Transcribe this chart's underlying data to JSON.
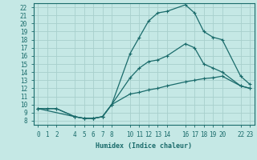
{
  "xlabel": "Humidex (Indice chaleur)",
  "background_color": "#c5e8e5",
  "grid_color": "#a8d0cc",
  "line_color": "#1a6b6b",
  "xlim": [
    -0.5,
    23.5
  ],
  "ylim": [
    7.5,
    22.5
  ],
  "xticks": [
    0,
    1,
    2,
    4,
    5,
    6,
    7,
    8,
    10,
    11,
    12,
    13,
    14,
    16,
    17,
    18,
    19,
    20,
    22,
    23
  ],
  "yticks": [
    8,
    9,
    10,
    11,
    12,
    13,
    14,
    15,
    16,
    17,
    18,
    19,
    20,
    21,
    22
  ],
  "line1_x": [
    0,
    1,
    2,
    4,
    5,
    6,
    7,
    8,
    10,
    11,
    12,
    13,
    14,
    16,
    17,
    18,
    19,
    20,
    22,
    23
  ],
  "line1_y": [
    9.5,
    9.5,
    9.5,
    8.5,
    8.3,
    8.3,
    8.5,
    10.0,
    16.3,
    18.3,
    20.3,
    21.3,
    21.5,
    22.3,
    21.3,
    19.0,
    18.3,
    18.0,
    13.5,
    12.5
  ],
  "line2_x": [
    0,
    4,
    5,
    6,
    7,
    8,
    10,
    11,
    12,
    13,
    14,
    16,
    17,
    18,
    19,
    20,
    22,
    23
  ],
  "line2_y": [
    9.5,
    8.5,
    8.3,
    8.3,
    8.5,
    10.0,
    13.3,
    14.5,
    15.3,
    15.5,
    16.0,
    17.5,
    17.0,
    15.0,
    14.5,
    14.0,
    12.3,
    12.0
  ],
  "line3_x": [
    0,
    2,
    4,
    5,
    6,
    7,
    8,
    10,
    11,
    12,
    13,
    14,
    16,
    17,
    18,
    19,
    20,
    22,
    23
  ],
  "line3_y": [
    9.5,
    9.5,
    8.5,
    8.3,
    8.3,
    8.5,
    10.0,
    11.3,
    11.5,
    11.8,
    12.0,
    12.3,
    12.8,
    13.0,
    13.2,
    13.3,
    13.5,
    12.3,
    12.0
  ],
  "xlabel_fontsize": 6,
  "tick_fontsize": 5.5
}
